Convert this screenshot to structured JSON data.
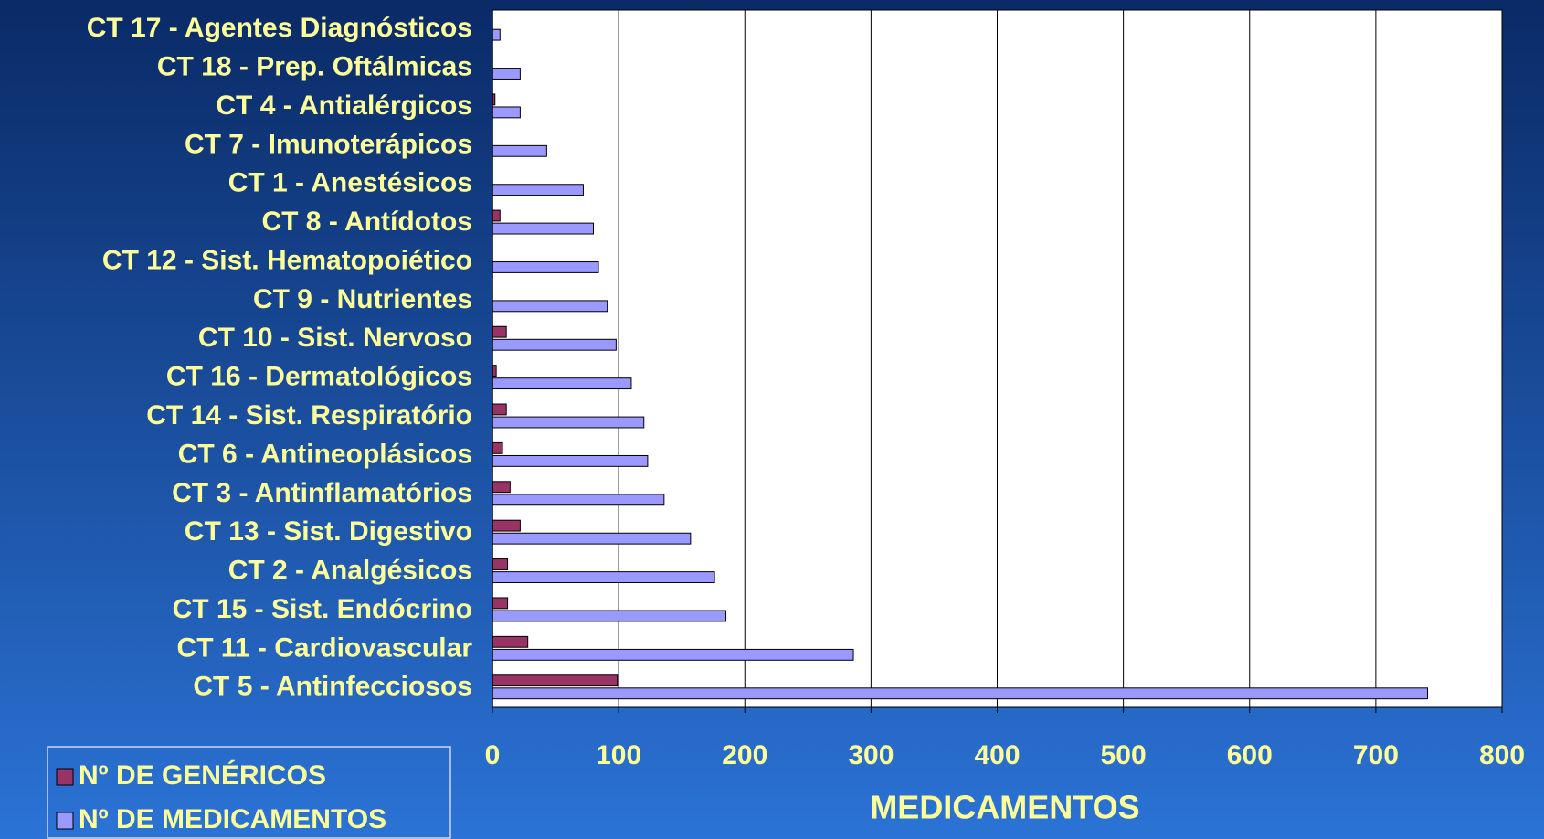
{
  "chart_data": {
    "type": "barh",
    "xlabel": "MEDICAMENTOS",
    "categories": [
      "CT 5 - Antinfecciosos",
      "CT 11 - Cardiovascular",
      "CT 15 - Sist. Endócrino",
      "CT 2 - Analgésicos",
      "CT 13 - Sist. Digestivo",
      "CT 3 - Antinflamatórios",
      "CT 6 - Antineoplásicos",
      "CT 14 - Sist. Respiratório",
      "CT 16 - Dermatológicos",
      "CT 10 - Sist. Nervoso",
      "CT 9 - Nutrientes",
      "CT 12 - Sist. Hematopoiético",
      "CT 8 - Antídotos",
      "CT 1 - Anestésicos",
      "CT 7 - Imunoterápicos",
      "CT 4 - Antialérgicos",
      "CT 18 - Prep. Oftálmicas",
      "CT 17 - Agentes Diagnósticos"
    ],
    "series": [
      {
        "name": "Nº DE GENÉRICOS",
        "color": "#993366",
        "values": [
          99,
          28,
          12,
          12,
          22,
          14,
          8,
          11,
          3,
          11,
          0,
          0,
          6,
          0,
          0,
          2,
          0,
          0
        ]
      },
      {
        "name": "Nº DE MEDICAMENTOS",
        "color": "#9999ff",
        "values": [
          741,
          286,
          185,
          176,
          157,
          136,
          123,
          120,
          110,
          98,
          91,
          84,
          80,
          72,
          43,
          22,
          22,
          6
        ]
      }
    ],
    "xlim": [
      0,
      800
    ],
    "xticks": [
      0,
      100,
      200,
      300,
      400,
      500,
      600,
      700,
      800
    ],
    "grid": true
  }
}
